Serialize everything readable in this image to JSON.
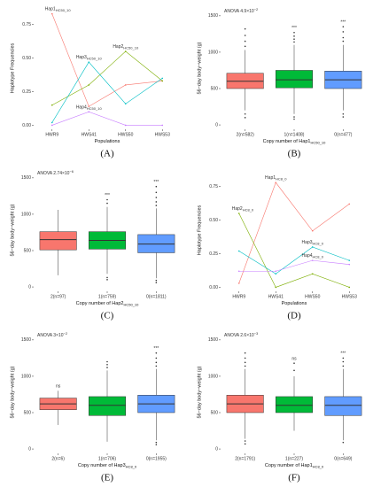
{
  "chart_data": [
    {
      "type": "line",
      "panel": "(A)",
      "xlabel": "Populations",
      "ylabel": "Haplotype Frequencies",
      "categories": [
        "HWR9",
        "HWS41",
        "HWS50",
        "HWS53"
      ],
      "ylim": [
        -0.03,
        0.88
      ],
      "yticks": [
        {
          "value": 0,
          "label": "0.00"
        },
        {
          "value": 0.25,
          "label": "0.25"
        },
        {
          "value": 0.5,
          "label": "0.50"
        },
        {
          "value": 0.75,
          "label": "0.75"
        }
      ],
      "series": [
        {
          "name": "Hap1",
          "sub": "HC50_10",
          "color": "#F8766D",
          "values": [
            0.83,
            0.14,
            0.3,
            0.33
          ]
        },
        {
          "name": "Hap2",
          "sub": "HC50_10",
          "color": "#7CAE00",
          "values": [
            0.15,
            0.3,
            0.55,
            0.33
          ]
        },
        {
          "name": "Hap3",
          "sub": "HC50_10",
          "color": "#00BFC4",
          "values": [
            0.02,
            0.47,
            0.16,
            0.35
          ]
        },
        {
          "name": "Hap4",
          "sub": "HC50_10",
          "color": "#C77CFF",
          "values": [
            0.0,
            0.1,
            0.0,
            0.0
          ]
        }
      ]
    },
    {
      "type": "box",
      "panel": "(B)",
      "annotation": "ANOVA 4.9×10",
      "annotation_sup": "−2",
      "xlabel": "Copy number of Hap1",
      "xlabel_sub": "HC50_10",
      "ylabel": "56−day body−weight (g)",
      "categories": [
        "2(n=582)",
        "1(n=1408)",
        "0(n=477)"
      ],
      "significance": [
        null,
        "***",
        "***"
      ],
      "ylim": [
        -60,
        1620
      ],
      "yticks": [
        0,
        500,
        1000,
        1500
      ],
      "colors": [
        "#F8766D",
        "#00BA38",
        "#619CFF"
      ],
      "boxes": [
        {
          "min": 200,
          "q1": 500,
          "median": 600,
          "q3": 710,
          "max": 1030,
          "outliers": [
            1080,
            1150,
            1230,
            1320,
            150,
            100
          ]
        },
        {
          "min": 150,
          "q1": 510,
          "median": 620,
          "q3": 750,
          "max": 1100,
          "outliers": [
            1140,
            1180,
            1220,
            1270,
            110,
            80
          ]
        },
        {
          "min": 200,
          "q1": 500,
          "median": 620,
          "q3": 740,
          "max": 1100,
          "outliers": [
            1150,
            1200,
            1280,
            1350,
            150,
            110
          ]
        }
      ]
    },
    {
      "type": "box",
      "panel": "(C)",
      "annotation": "ANOVA 2.74×10",
      "annotation_sup": "−6",
      "xlabel": "Copy number of Hap2",
      "xlabel_sub": "HC50_10",
      "ylabel": "56−day body−weight (g)",
      "categories": [
        "2(n=97)",
        "1(n=759)",
        "0(n=1811)"
      ],
      "significance": [
        null,
        "***",
        "***"
      ],
      "ylim": [
        -60,
        1620
      ],
      "yticks": [
        0,
        500,
        1000,
        1500
      ],
      "colors": [
        "#F8766D",
        "#00BA38",
        "#619CFF"
      ],
      "boxes": [
        {
          "min": 160,
          "q1": 510,
          "median": 650,
          "q3": 760,
          "max": 1060,
          "outliers": []
        },
        {
          "min": 180,
          "q1": 520,
          "median": 640,
          "q3": 760,
          "max": 1100,
          "outliers": [
            1150,
            1200,
            130,
            100
          ]
        },
        {
          "min": 120,
          "q1": 470,
          "median": 590,
          "q3": 720,
          "max": 1080,
          "outliers": [
            1120,
            1170,
            1230,
            1300,
            1380,
            90,
            60
          ]
        }
      ]
    },
    {
      "type": "line",
      "panel": "(D)",
      "xlabel": "Populations",
      "ylabel": "Haplotype Frequencies",
      "categories": [
        "HWR9",
        "HWS41",
        "HWS50",
        "HWS53"
      ],
      "ylim": [
        -0.03,
        0.88
      ],
      "yticks": [
        {
          "value": 0,
          "label": "0.00"
        },
        {
          "value": 0.25,
          "label": "0.25"
        },
        {
          "value": 0.5,
          "label": "0.50"
        },
        {
          "value": 0.75,
          "label": "0.75"
        }
      ],
      "series": [
        {
          "name": "Hap1",
          "sub": "HC8_0",
          "color": "#F8766D",
          "values": [
            0.03,
            0.78,
            0.42,
            0.62
          ]
        },
        {
          "name": "Hap2",
          "sub": "HC8_0",
          "color": "#7CAE00",
          "values": [
            0.55,
            0.0,
            0.1,
            0.0
          ]
        },
        {
          "name": "Hap3",
          "sub": "HC8_0",
          "color": "#00BFC4",
          "values": [
            0.27,
            0.1,
            0.3,
            0.2
          ]
        },
        {
          "name": "Hap4",
          "sub": "HC8_0",
          "color": "#C77CFF",
          "values": [
            0.12,
            0.12,
            0.2,
            0.17
          ]
        }
      ]
    },
    {
      "type": "box",
      "panel": "(E)",
      "annotation": "ANOVA 3×10",
      "annotation_sup": "−2",
      "xlabel": "Copy number of Hap3",
      "xlabel_sub": "HC8_0",
      "ylabel": "56−day body−weight (g)",
      "categories": [
        "2(n=6)",
        "1(n=706)",
        "0(n=1955)"
      ],
      "significance": [
        "ns",
        null,
        "***"
      ],
      "ylim": [
        -60,
        1620
      ],
      "yticks": [
        0,
        500,
        1000,
        1500
      ],
      "colors": [
        "#F8766D",
        "#00BA38",
        "#619CFF"
      ],
      "boxes": [
        {
          "min": 330,
          "q1": 540,
          "median": 620,
          "q3": 700,
          "max": 800,
          "outliers": []
        },
        {
          "min": 100,
          "q1": 460,
          "median": 600,
          "q3": 720,
          "max": 1080,
          "outliers": [
            1120,
            1160,
            1200
          ]
        },
        {
          "min": 120,
          "q1": 500,
          "median": 620,
          "q3": 740,
          "max": 1100,
          "outliers": [
            1140,
            1190,
            1250,
            1320,
            90,
            60
          ]
        }
      ]
    },
    {
      "type": "box",
      "panel": "(F)",
      "annotation": "ANOVA 2.6×10",
      "annotation_sup": "−3",
      "xlabel": "Copy number of Hap1",
      "xlabel_sub": "HC8_0",
      "ylabel": "56−day body−weight (g)",
      "categories": [
        "2(n=1791)",
        "1(n=227)",
        "0(n=649)"
      ],
      "significance": [
        null,
        "ns",
        "***"
      ],
      "ylim": [
        -60,
        1620
      ],
      "yticks": [
        0,
        500,
        1000,
        1500
      ],
      "colors": [
        "#F8766D",
        "#00BA38",
        "#619CFF"
      ],
      "boxes": [
        {
          "min": 140,
          "q1": 500,
          "median": 620,
          "q3": 740,
          "max": 1100,
          "outliers": [
            1140,
            1190,
            1250,
            1320,
            110,
            70
          ]
        },
        {
          "min": 250,
          "q1": 500,
          "median": 600,
          "q3": 720,
          "max": 1000,
          "outliers": [
            1080,
            1180
          ]
        },
        {
          "min": 120,
          "q1": 460,
          "median": 600,
          "q3": 720,
          "max": 1100,
          "outliers": [
            1140,
            1200,
            1250,
            90
          ]
        }
      ]
    }
  ]
}
